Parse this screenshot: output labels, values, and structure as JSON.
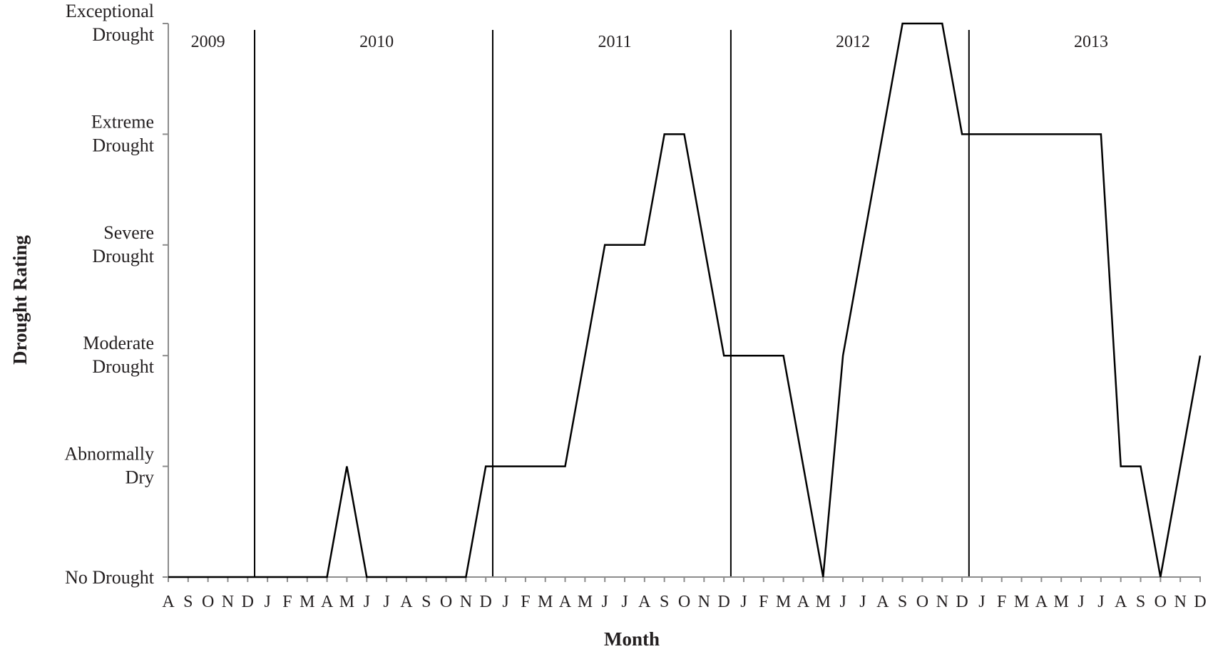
{
  "chart_data": {
    "type": "line",
    "title": "",
    "xlabel": "Month",
    "ylabel": "Drought Rating",
    "y_categories": [
      [
        "No Drought"
      ],
      [
        "Abnormally",
        "Dry"
      ],
      [
        "Moderate",
        "Drought"
      ],
      [
        "Severe",
        "Drought"
      ],
      [
        "Extreme",
        "Drought"
      ],
      [
        "Exceptional",
        "Drought"
      ]
    ],
    "ylim": [
      0,
      5
    ],
    "x_tick_labels": [
      "A",
      "S",
      "O",
      "N",
      "D",
      "J",
      "F",
      "M",
      "A",
      "M",
      "J",
      "J",
      "A",
      "S",
      "O",
      "N",
      "D",
      "J",
      "F",
      "M",
      "A",
      "M",
      "J",
      "J",
      "A",
      "S",
      "O",
      "N",
      "D",
      "J",
      "F",
      "M",
      "A",
      "M",
      "J",
      "J",
      "A",
      "S",
      "O",
      "N",
      "D",
      "J",
      "F",
      "M",
      "A",
      "M",
      "J",
      "J",
      "A",
      "S",
      "O",
      "N",
      "D"
    ],
    "x_dates": [
      "2009-08",
      "2009-09",
      "2009-10",
      "2009-11",
      "2009-12",
      "2010-01",
      "2010-02",
      "2010-03",
      "2010-04",
      "2010-05",
      "2010-06",
      "2010-07",
      "2010-08",
      "2010-09",
      "2010-10",
      "2010-11",
      "2010-12",
      "2011-01",
      "2011-02",
      "2011-03",
      "2011-04",
      "2011-05",
      "2011-06",
      "2011-07",
      "2011-08",
      "2011-09",
      "2011-10",
      "2011-11",
      "2011-12",
      "2012-01",
      "2012-02",
      "2012-03",
      "2012-04",
      "2012-05",
      "2012-06",
      "2012-07",
      "2012-08",
      "2012-09",
      "2012-10",
      "2012-11",
      "2012-12",
      "2013-01",
      "2013-02",
      "2013-03",
      "2013-04",
      "2013-05",
      "2013-06",
      "2013-07",
      "2013-08",
      "2013-09",
      "2013-10",
      "2013-11",
      "2013-12"
    ],
    "series": [
      {
        "values": [
          0,
          0,
          0,
          0,
          0,
          0,
          0,
          0,
          0,
          1,
          0,
          0,
          0,
          0,
          0,
          0,
          1,
          1,
          1,
          1,
          1,
          2,
          3,
          3,
          3,
          4,
          4,
          3,
          2,
          2,
          2,
          2,
          1,
          0,
          2,
          3,
          4,
          5,
          5,
          5,
          4,
          4,
          4,
          4,
          4,
          4,
          4,
          4,
          1,
          1,
          0,
          1,
          2
        ],
        "color": "#000000"
      }
    ],
    "year_labels": [
      {
        "label": "2009",
        "start": "2009-08",
        "end": "2009-12"
      },
      {
        "label": "2010",
        "start": "2010-01",
        "end": "2010-12"
      },
      {
        "label": "2011",
        "start": "2011-01",
        "end": "2011-12"
      },
      {
        "label": "2012",
        "start": "2012-01",
        "end": "2012-12"
      },
      {
        "label": "2013",
        "start": "2013-01",
        "end": "2013-12"
      }
    ],
    "year_dividers": [
      "2009/2010",
      "2010/2011",
      "2011/2012",
      "2012/2013"
    ],
    "grid": false,
    "legend": "none"
  }
}
